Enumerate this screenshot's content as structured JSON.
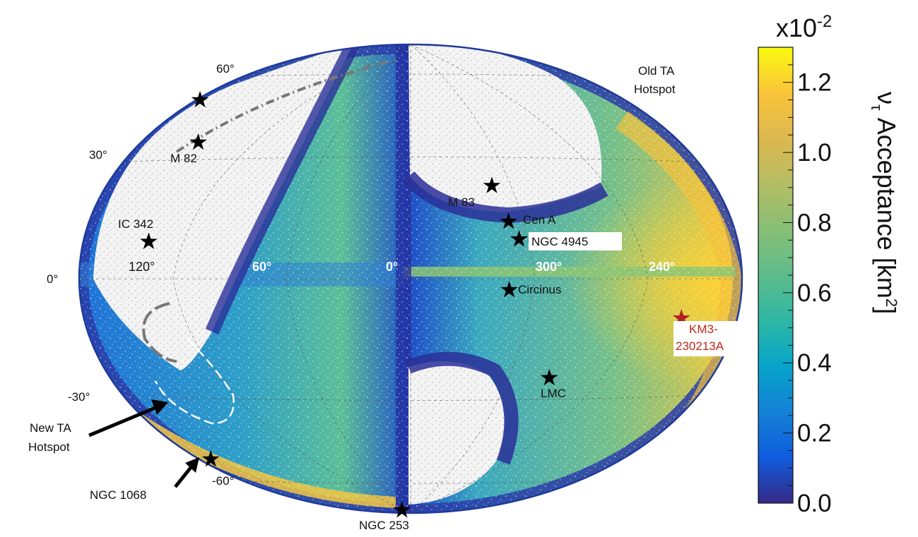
{
  "chart_data": {
    "type": "heatmap",
    "projection": "hammer-aitoff",
    "coordinate_system": "galactic",
    "colormap": "parula",
    "colorbar": {
      "multiplier": "x10",
      "exponent": "-2",
      "label_main": "ν",
      "label_sub": "τ",
      "label_rest": " Acceptance [km",
      "label_sup": "2",
      "label_end": "]",
      "range": [
        0.0,
        1.3
      ],
      "ticks": [
        {
          "value": 0.0,
          "label": "0.0"
        },
        {
          "value": 0.2,
          "label": "0.2"
        },
        {
          "value": 0.4,
          "label": "0.4"
        },
        {
          "value": 0.6,
          "label": "0.6"
        },
        {
          "value": 0.8,
          "label": "0.8"
        },
        {
          "value": 1.0,
          "label": "1.0"
        },
        {
          "value": 1.2,
          "label": "1.2"
        }
      ]
    },
    "longitude_labels": [
      {
        "lon": 120,
        "label": "120°"
      },
      {
        "lon": 60,
        "label": "60°"
      },
      {
        "lon": 0,
        "label": "0°"
      },
      {
        "lon": 300,
        "label": "300°"
      },
      {
        "lon": 240,
        "label": "240°"
      }
    ],
    "latitude_labels": [
      {
        "lat": 60,
        "label": "60°"
      },
      {
        "lat": 30,
        "label": "30°"
      },
      {
        "lat": 0,
        "label": "0°"
      },
      {
        "lat": -30,
        "label": "-30°"
      },
      {
        "lat": -60,
        "label": "-60°"
      }
    ],
    "sources": [
      {
        "name": "M 82",
        "lon": 141.4,
        "lat": 40.6,
        "color": "#000000"
      },
      {
        "name": "IC 342",
        "lon": 138.2,
        "lat": 10.6,
        "color": "#000000"
      },
      {
        "name": "M 83",
        "lon": 314.6,
        "lat": 32.0,
        "color": "#000000"
      },
      {
        "name": "Cen A",
        "lon": 309.5,
        "lat": 19.4,
        "color": "#000000"
      },
      {
        "name": "NGC 4945",
        "lon": 305.3,
        "lat": 13.3,
        "color": "#000000"
      },
      {
        "name": "Circinus",
        "lon": 311.3,
        "lat": -3.8,
        "color": "#000000"
      },
      {
        "name": "LMC",
        "lon": 280.5,
        "lat": -32.9,
        "color": "#000000"
      },
      {
        "name": "NGC 253",
        "lon": 97.4,
        "lat": -88.0,
        "color": "#000000"
      },
      {
        "name": "NGC 1068",
        "lon": 172.1,
        "lat": -51.9,
        "color": "#000000"
      },
      {
        "name": "KM3-230213A",
        "lon": 216.1,
        "lat": -11.1,
        "color": "#b22222"
      },
      {
        "name": "Old TA Hotspot",
        "lon": 177.4,
        "lat": 50.2,
        "color": "#000000"
      }
    ],
    "annotations": [
      {
        "text": "New TA Hotspot",
        "target": "dashed-contour"
      },
      {
        "text": "NGC 1068",
        "target": "NGC 1068"
      }
    ]
  },
  "labels": {
    "m82": "M 82",
    "ic342": "IC 342",
    "m83": "M 83",
    "cena": "Cen A",
    "ngc4945": "NGC 4945",
    "circinus": "Circinus",
    "lmc": "LMC",
    "ngc253": "NGC 253",
    "ngc1068": "NGC 1068",
    "km3_line1": "KM3-",
    "km3_line2": "230213A",
    "oldta_line1": "Old TA",
    "oldta_line2": "Hotspot",
    "newta_line1": "New TA",
    "newta_line2": "Hotspot"
  },
  "colors": {
    "ellipse_border": "#1f3a9a",
    "masked_region": "#ececec",
    "star": "#000000",
    "km3_star": "#a61b1b",
    "km3_text": "#c0261a"
  }
}
